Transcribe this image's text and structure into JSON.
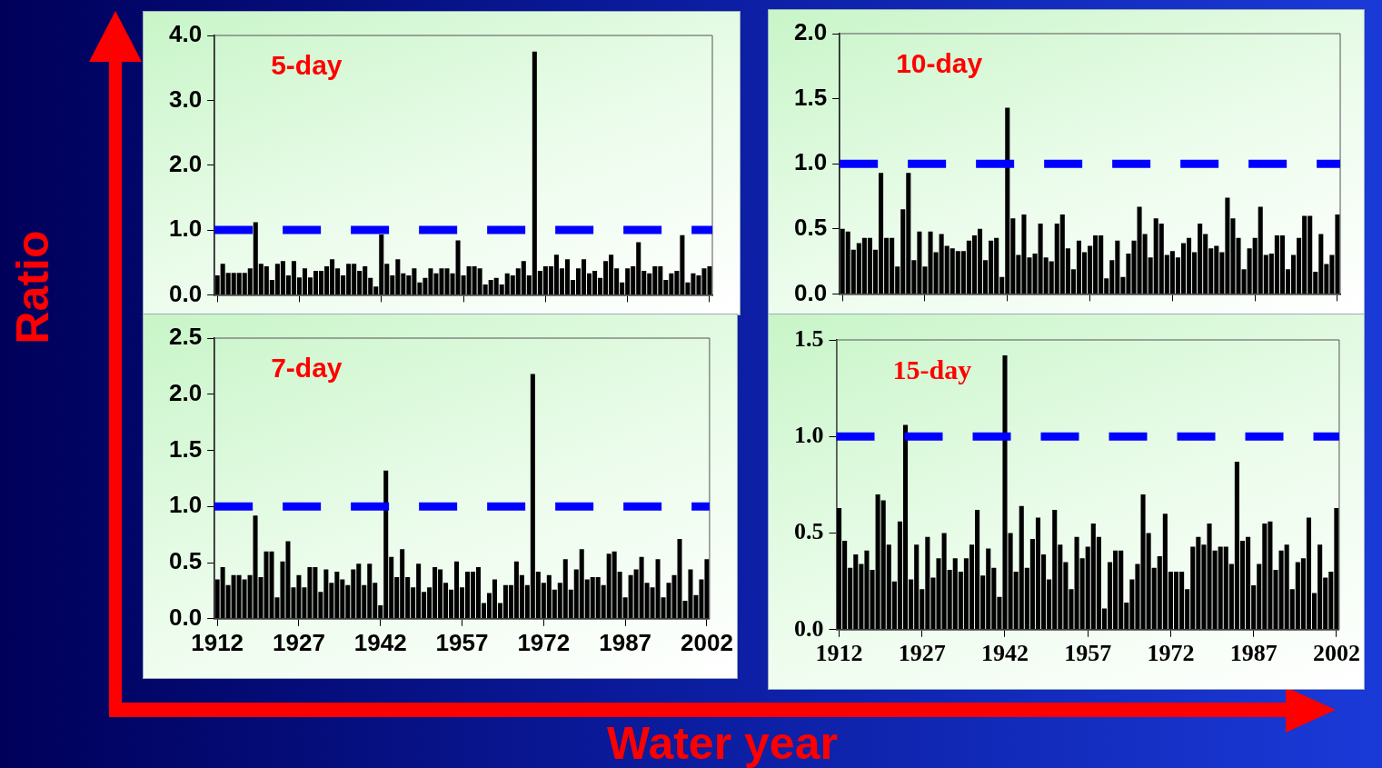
{
  "chart_data": [
    {
      "type": "bar",
      "ylabel": "Ratio",
      "annotations": [
        "5-day"
      ],
      "tick_labels": "y",
      "categories": [
        "1912",
        null,
        null,
        null,
        null,
        null,
        null,
        null,
        null,
        null,
        null,
        null,
        null,
        null,
        null,
        "1927",
        null,
        null,
        null,
        null,
        null,
        null,
        null,
        null,
        null,
        null,
        null,
        null,
        null,
        null,
        "1942",
        null,
        null,
        null,
        null,
        null,
        null,
        null,
        null,
        null,
        null,
        null,
        null,
        null,
        null,
        "1957",
        null,
        null,
        null,
        null,
        null,
        null,
        null,
        null,
        null,
        null,
        null,
        null,
        null,
        null,
        "1972",
        null,
        null,
        null,
        null,
        null,
        null,
        null,
        null,
        null,
        null,
        null,
        null,
        null,
        null,
        "1987",
        null,
        null,
        null,
        null,
        null,
        null,
        null,
        null,
        null,
        null,
        null,
        null,
        null,
        null,
        "2002"
      ],
      "series": [
        {
          "color": "#000000",
          "values": [
            0.3,
            0.48,
            0.34,
            0.34,
            0.34,
            0.34,
            0.41,
            1.12,
            0.48,
            0.44,
            0.23,
            0.48,
            0.52,
            0.3,
            0.52,
            0.27,
            0.41,
            0.27,
            0.37,
            0.37,
            0.44,
            0.55,
            0.41,
            0.3,
            0.48,
            0.48,
            0.37,
            0.44,
            0.26,
            0.13,
            0.93,
            0.48,
            0.3,
            0.55,
            0.33,
            0.3,
            0.41,
            0.19,
            0.26,
            0.41,
            0.33,
            0.41,
            0.41,
            0.33,
            0.84,
            0.3,
            0.44,
            0.44,
            0.41,
            0.16,
            0.23,
            0.26,
            0.16,
            0.33,
            0.3,
            0.41,
            0.52,
            0.3,
            3.75,
            0.37,
            0.44,
            0.44,
            0.62,
            0.41,
            0.55,
            0.23,
            0.41,
            0.55,
            0.33,
            0.37,
            0.26,
            0.52,
            0.62,
            0.41,
            0.19,
            0.41,
            0.44,
            0.81,
            0.37,
            0.33,
            0.44,
            0.44,
            0.23,
            0.33,
            0.37,
            0.92,
            0.19,
            0.33,
            0.3,
            0.41,
            0.44
          ]
        }
      ],
      "ylim": [
        0,
        4
      ],
      "yticks": [
        {
          "value": 0,
          "label": "0.0"
        },
        {
          "value": 1,
          "label": "1.0"
        },
        {
          "value": 2,
          "label": "2.0"
        },
        {
          "value": 3,
          "label": "3.0"
        },
        {
          "value": 4,
          "label": "4.0"
        }
      ],
      "ref_lines": [
        {
          "axis": "y",
          "value": 1,
          "color": "#0000ff",
          "line_style": "dashed"
        }
      ]
    },
    {
      "type": "bar",
      "annotations": [
        "10-day"
      ],
      "tick_labels": "y",
      "categories": [
        "1912",
        null,
        null,
        null,
        null,
        null,
        null,
        null,
        null,
        null,
        null,
        null,
        null,
        null,
        null,
        "1927",
        null,
        null,
        null,
        null,
        null,
        null,
        null,
        null,
        null,
        null,
        null,
        null,
        null,
        null,
        "1942",
        null,
        null,
        null,
        null,
        null,
        null,
        null,
        null,
        null,
        null,
        null,
        null,
        null,
        null,
        "1957",
        null,
        null,
        null,
        null,
        null,
        null,
        null,
        null,
        null,
        null,
        null,
        null,
        null,
        null,
        "1972",
        null,
        null,
        null,
        null,
        null,
        null,
        null,
        null,
        null,
        null,
        null,
        null,
        null,
        null,
        "1987",
        null,
        null,
        null,
        null,
        null,
        null,
        null,
        null,
        null,
        null,
        null,
        null,
        null,
        null,
        "2002"
      ],
      "series": [
        {
          "color": "#000000",
          "values": [
            0.5,
            0.48,
            0.34,
            0.39,
            0.43,
            0.43,
            0.34,
            0.93,
            0.43,
            0.43,
            0.21,
            0.65,
            0.93,
            0.26,
            0.48,
            0.21,
            0.48,
            0.32,
            0.46,
            0.37,
            0.35,
            0.33,
            0.33,
            0.41,
            0.45,
            0.5,
            0.26,
            0.41,
            0.43,
            0.13,
            1.43,
            0.58,
            0.3,
            0.61,
            0.28,
            0.31,
            0.54,
            0.28,
            0.25,
            0.54,
            0.61,
            0.35,
            0.19,
            0.41,
            0.32,
            0.37,
            0.45,
            0.45,
            0.12,
            0.26,
            0.41,
            0.13,
            0.31,
            0.41,
            0.67,
            0.46,
            0.28,
            0.58,
            0.54,
            0.3,
            0.33,
            0.28,
            0.39,
            0.43,
            0.32,
            0.54,
            0.46,
            0.35,
            0.37,
            0.32,
            0.74,
            0.58,
            0.43,
            0.19,
            0.35,
            0.43,
            0.67,
            0.3,
            0.31,
            0.45,
            0.45,
            0.19,
            0.3,
            0.43,
            0.6,
            0.6,
            0.17,
            0.46,
            0.23,
            0.3,
            0.61
          ]
        }
      ],
      "ylim": [
        0,
        2
      ],
      "yticks": [
        {
          "value": 0,
          "label": "0.0"
        },
        0.5,
        {
          "value": 1,
          "label": "1.0"
        },
        1.5,
        {
          "value": 2,
          "label": "2.0"
        }
      ],
      "ref_lines": [
        {
          "axis": "y",
          "value": 1,
          "color": "#0000ff",
          "line_style": "dashed"
        }
      ]
    },
    {
      "type": "bar",
      "xlabel": "Water year",
      "annotations": [
        "7-day"
      ],
      "categories": [
        "1912",
        null,
        null,
        null,
        null,
        null,
        null,
        null,
        null,
        null,
        null,
        null,
        null,
        null,
        null,
        "1927",
        null,
        null,
        null,
        null,
        null,
        null,
        null,
        null,
        null,
        null,
        null,
        null,
        null,
        null,
        "1942",
        null,
        null,
        null,
        null,
        null,
        null,
        null,
        null,
        null,
        null,
        null,
        null,
        null,
        null,
        "1957",
        null,
        null,
        null,
        null,
        null,
        null,
        null,
        null,
        null,
        null,
        null,
        null,
        null,
        null,
        "1972",
        null,
        null,
        null,
        null,
        null,
        null,
        null,
        null,
        null,
        null,
        null,
        null,
        null,
        null,
        "1987",
        null,
        null,
        null,
        null,
        null,
        null,
        null,
        null,
        null,
        null,
        null,
        null,
        null,
        null,
        "2002"
      ],
      "series": [
        {
          "color": "#000000",
          "values": [
            0.35,
            0.46,
            0.3,
            0.39,
            0.39,
            0.35,
            0.39,
            0.92,
            0.37,
            0.6,
            0.6,
            0.19,
            0.51,
            0.69,
            0.28,
            0.39,
            0.28,
            0.46,
            0.46,
            0.24,
            0.44,
            0.32,
            0.42,
            0.35,
            0.3,
            0.44,
            0.49,
            0.3,
            0.49,
            0.32,
            0.12,
            1.32,
            0.55,
            0.37,
            0.62,
            0.37,
            0.28,
            0.49,
            0.24,
            0.28,
            0.46,
            0.44,
            0.32,
            0.26,
            0.51,
            0.28,
            0.42,
            0.42,
            0.46,
            0.14,
            0.23,
            0.35,
            0.14,
            0.3,
            0.3,
            0.51,
            0.39,
            0.3,
            2.18,
            0.42,
            0.32,
            0.39,
            0.26,
            0.32,
            0.53,
            0.26,
            0.44,
            0.62,
            0.35,
            0.37,
            0.37,
            0.3,
            0.58,
            0.6,
            0.42,
            0.19,
            0.39,
            0.44,
            0.55,
            0.32,
            0.28,
            0.53,
            0.19,
            0.32,
            0.39,
            0.71,
            0.16,
            0.44,
            0.21,
            0.35,
            0.53
          ]
        }
      ],
      "ylim": [
        0,
        2.5
      ],
      "yticks": [
        {
          "value": 0,
          "label": "0.0"
        },
        0.5,
        {
          "value": 1,
          "label": "1.0"
        },
        1.5,
        {
          "value": 2,
          "label": "2.0"
        },
        2.5
      ],
      "ref_lines": [
        {
          "axis": "y",
          "value": 1,
          "color": "#0000ff",
          "line_style": "dashed"
        }
      ]
    },
    {
      "type": "bar",
      "annotations": [
        "15-day"
      ],
      "categories": [
        "1912",
        null,
        null,
        null,
        null,
        null,
        null,
        null,
        null,
        null,
        null,
        null,
        null,
        null,
        null,
        "1927",
        null,
        null,
        null,
        null,
        null,
        null,
        null,
        null,
        null,
        null,
        null,
        null,
        null,
        null,
        "1942",
        null,
        null,
        null,
        null,
        null,
        null,
        null,
        null,
        null,
        null,
        null,
        null,
        null,
        null,
        "1957",
        null,
        null,
        null,
        null,
        null,
        null,
        null,
        null,
        null,
        null,
        null,
        null,
        null,
        null,
        "1972",
        null,
        null,
        null,
        null,
        null,
        null,
        null,
        null,
        null,
        null,
        null,
        null,
        null,
        null,
        "1987",
        null,
        null,
        null,
        null,
        null,
        null,
        null,
        null,
        null,
        null,
        null,
        null,
        null,
        null,
        "2002"
      ],
      "series": [
        {
          "color": "#000000",
          "values": [
            0.63,
            0.46,
            0.32,
            0.39,
            0.34,
            0.41,
            0.31,
            0.7,
            0.67,
            0.44,
            0.25,
            0.56,
            1.06,
            0.26,
            0.44,
            0.21,
            0.48,
            0.27,
            0.37,
            0.5,
            0.31,
            0.37,
            0.3,
            0.37,
            0.44,
            0.62,
            0.28,
            0.42,
            0.32,
            0.17,
            1.42,
            0.5,
            0.3,
            0.64,
            0.32,
            0.47,
            0.58,
            0.39,
            0.26,
            0.62,
            0.44,
            0.35,
            0.21,
            0.48,
            0.37,
            0.43,
            0.55,
            0.48,
            0.11,
            0.35,
            0.41,
            0.41,
            0.14,
            0.26,
            0.34,
            0.7,
            0.5,
            0.32,
            0.38,
            0.6,
            0.3,
            0.3,
            0.3,
            0.21,
            0.43,
            0.48,
            0.44,
            0.55,
            0.41,
            0.43,
            0.43,
            0.34,
            0.87,
            0.46,
            0.48,
            0.23,
            0.34,
            0.55,
            0.56,
            0.31,
            0.41,
            0.44,
            0.21,
            0.35,
            0.37,
            0.58,
            0.19,
            0.44,
            0.27,
            0.3,
            0.63
          ]
        }
      ],
      "ylim": [
        0,
        1.5
      ],
      "yticks": [
        {
          "value": 0,
          "label": "0.0"
        },
        0.5,
        {
          "value": 1,
          "label": "1.0"
        },
        1.5
      ],
      "ref_lines": [
        {
          "axis": "y",
          "value": 1,
          "color": "#0000ff",
          "line_style": "dashed"
        }
      ]
    }
  ]
}
